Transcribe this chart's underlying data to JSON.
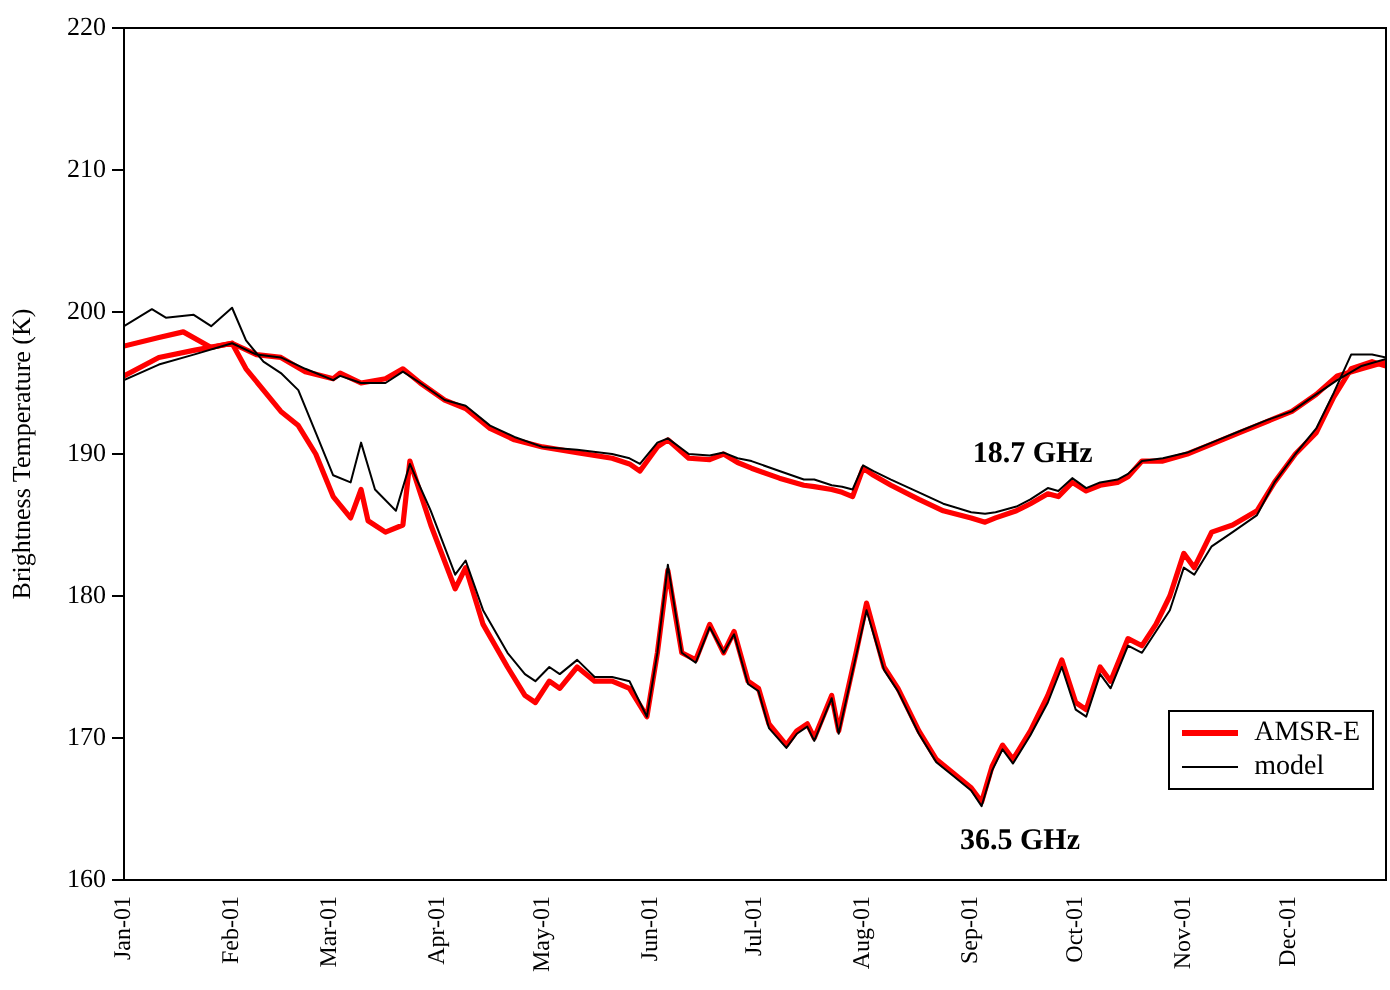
{
  "chart_data": {
    "type": "line",
    "ylabel": "Brightness Temperature (K)",
    "xlim": [
      "--01-01",
      "--12-29"
    ],
    "xticks": [
      {
        "value": "--01-01",
        "label": "Jan-01"
      },
      {
        "value": "--02-01",
        "label": "Feb-01"
      },
      {
        "value": "--03-01",
        "label": "Mar-01"
      },
      {
        "value": "--04-01",
        "label": "Apr-01"
      },
      {
        "value": "--05-01",
        "label": "May-01"
      },
      {
        "value": "--06-01",
        "label": "Jun-01"
      },
      {
        "value": "--07-01",
        "label": "Jul-01"
      },
      {
        "value": "--08-01",
        "label": "Aug-01"
      },
      {
        "value": "--09-01",
        "label": "Sep-01"
      },
      {
        "value": "--10-01",
        "label": "Oct-01"
      },
      {
        "value": "--11-01",
        "label": "Nov-01"
      },
      {
        "value": "--12-01",
        "label": "Dec-01"
      }
    ],
    "ylim": [
      160,
      220
    ],
    "yticks": [
      160,
      170,
      180,
      190,
      200,
      210,
      220
    ],
    "legend": "bottom right",
    "marker": "none",
    "line_style": "solid",
    "annotations": [
      "18.7 GHz",
      "36.5 GHz"
    ],
    "x": [
      "--01-01",
      "--01-11",
      "--01-21",
      "--02-01",
      "--02-08",
      "--02-15",
      "--02-22",
      "--03-02",
      "--03-04",
      "--03-10",
      "--03-17",
      "--03-22",
      "--03-27",
      "--04-03",
      "--04-09",
      "--04-16",
      "--04-23",
      "--05-01",
      "--05-11",
      "--05-21",
      "--05-26",
      "--05-29",
      "--06-03",
      "--06-06",
      "--06-12",
      "--06-18",
      "--06-22",
      "--06-26",
      "--06-30",
      "--07-08",
      "--07-15",
      "--07-18",
      "--07-23",
      "--07-26",
      "--07-29",
      "--08-01",
      "--08-04",
      "--08-09",
      "--08-17",
      "--08-24",
      "--09-01",
      "--09-05",
      "--09-08",
      "--09-14",
      "--09-18",
      "--09-23",
      "--09-26",
      "--09-30",
      "--10-04",
      "--10-08",
      "--10-13",
      "--10-16",
      "--10-20",
      "--10-26",
      "--11-02",
      "--11-09",
      "--11-17",
      "--11-25",
      "--12-02",
      "--12-09",
      "--12-15",
      "--12-22",
      "--12-29"
    ],
    "series": [
      {
        "name": "AMSR-E",
        "color": "#ff0000",
        "x": [
          "--01-01",
          "--01-11",
          "--01-18",
          "--01-26",
          "--02-01",
          "--02-05",
          "--02-15",
          "--02-20",
          "--02-25",
          "--03-02",
          "--03-07",
          "--03-10",
          "--03-12",
          "--03-17",
          "--03-22",
          "--03-24",
          "--03-30",
          "--04-06",
          "--04-09",
          "--04-14",
          "--04-21",
          "--04-26",
          "--04-29",
          "--05-03",
          "--05-06",
          "--05-11",
          "--05-16",
          "--05-21",
          "--05-26",
          "--05-31",
          "--06-03",
          "--06-06",
          "--06-10",
          "--06-14",
          "--06-18",
          "--06-22",
          "--06-25",
          "--06-29",
          "--07-02",
          "--07-05",
          "--07-10",
          "--07-13",
          "--07-16",
          "--07-18",
          "--07-23",
          "--07-25",
          "--07-30",
          "--08-02",
          "--08-07",
          "--08-11",
          "--08-17",
          "--08-22",
          "--08-27",
          "--09-01",
          "--09-04",
          "--09-07",
          "--09-10",
          "--09-13",
          "--09-18",
          "--09-23",
          "--09-27",
          "--10-01",
          "--10-04",
          "--10-08",
          "--10-11",
          "--10-16",
          "--10-20",
          "--10-24",
          "--10-28",
          "--11-01",
          "--11-04",
          "--11-09",
          "--11-15",
          "--11-22",
          "--11-27",
          "--12-03",
          "--12-09",
          "--12-14",
          "--12-19",
          "--12-25",
          "--12-29"
        ],
        "values": [
          197.6,
          198.2,
          198.6,
          197.5,
          197.8,
          196,
          193,
          192,
          190,
          187,
          185.5,
          187.5,
          185.3,
          184.5,
          185,
          189.5,
          185,
          180.5,
          182,
          178,
          175,
          173,
          172.5,
          174,
          173.5,
          175,
          174,
          174,
          173.5,
          171.5,
          176,
          181.8,
          176,
          175.5,
          178,
          176,
          177.5,
          174,
          173.5,
          171,
          169.5,
          170.5,
          171,
          170,
          173,
          170.5,
          176,
          179.5,
          175,
          173.5,
          170.5,
          168.5,
          167.5,
          166.5,
          165.5,
          168,
          169.5,
          168.5,
          170.5,
          173,
          175.5,
          172.5,
          172,
          175,
          174,
          177,
          176.5,
          178,
          180,
          183,
          182,
          184.5,
          185,
          186,
          188,
          190,
          191.5,
          194,
          196,
          196.5,
          196.2
        ]
      },
      {
        "name": "model",
        "color": "#000000",
        "x": [
          "--01-01",
          "--01-09",
          "--01-13",
          "--01-21",
          "--01-26",
          "--02-01",
          "--02-05",
          "--02-10",
          "--02-15",
          "--02-20",
          "--02-25",
          "--03-02",
          "--03-07",
          "--03-10",
          "--03-14",
          "--03-20",
          "--03-24",
          "--03-30",
          "--04-06",
          "--04-09",
          "--04-14",
          "--04-21",
          "--04-26",
          "--04-29",
          "--05-03",
          "--05-06",
          "--05-11",
          "--05-16",
          "--05-21",
          "--05-26",
          "--05-31",
          "--06-03",
          "--06-06",
          "--06-10",
          "--06-14",
          "--06-18",
          "--06-22",
          "--06-25",
          "--06-29",
          "--07-02",
          "--07-05",
          "--07-10",
          "--07-13",
          "--07-16",
          "--07-18",
          "--07-23",
          "--07-25",
          "--07-30",
          "--08-02",
          "--08-07",
          "--08-11",
          "--08-17",
          "--08-22",
          "--08-27",
          "--09-01",
          "--09-04",
          "--09-07",
          "--09-10",
          "--09-13",
          "--09-18",
          "--09-23",
          "--09-27",
          "--10-01",
          "--10-04",
          "--10-08",
          "--10-11",
          "--10-16",
          "--10-20",
          "--10-24",
          "--10-28",
          "--11-01",
          "--11-04",
          "--11-09",
          "--11-15",
          "--11-22",
          "--11-27",
          "--12-03",
          "--12-09",
          "--12-14",
          "--12-19",
          "--12-25",
          "--12-29"
        ],
        "values": [
          199,
          200.2,
          199.6,
          199.8,
          199,
          200.3,
          198,
          196.5,
          195.7,
          194.5,
          191.5,
          188.5,
          188,
          190.8,
          187.5,
          186,
          189.3,
          186,
          181.5,
          182.5,
          179,
          176,
          174.5,
          174,
          175,
          174.5,
          175.5,
          174.3,
          174.3,
          174,
          171.5,
          176,
          182.2,
          176,
          175.3,
          177.8,
          176,
          177.3,
          173.8,
          173.3,
          170.7,
          169.3,
          170.3,
          170.8,
          169.8,
          172.8,
          170.3,
          175.8,
          179,
          174.8,
          173.3,
          170.3,
          168.3,
          167.3,
          166.3,
          165.2,
          167.7,
          169.2,
          168.2,
          170.2,
          172.5,
          175,
          172,
          171.5,
          174.5,
          173.5,
          176.5,
          176,
          177.5,
          179,
          182,
          181.5,
          183.5,
          184.5,
          185.7,
          188,
          190,
          191.8,
          194.3,
          197,
          197,
          196.8
        ]
      },
      {
        "color": "#ff0000",
        "values": [
          195.5,
          196.8,
          197.3,
          197.8,
          197,
          196.8,
          195.8,
          195.3,
          195.7,
          195,
          195.3,
          196,
          195,
          193.8,
          193.2,
          191.8,
          191,
          190.5,
          190.1,
          189.7,
          189.3,
          188.8,
          190.5,
          191,
          189.7,
          189.6,
          190,
          189.4,
          189,
          188.3,
          187.8,
          187.7,
          187.5,
          187.3,
          187,
          189,
          188.5,
          187.8,
          186.8,
          186,
          185.5,
          185.2,
          185.5,
          186,
          186.5,
          187.2,
          187,
          188,
          187.4,
          187.8,
          188,
          188.4,
          189.5,
          189.5,
          190,
          190.7,
          191.5,
          192.3,
          193,
          194.2,
          195.5,
          196,
          196.5
        ]
      },
      {
        "color": "#000000",
        "values": [
          195.2,
          196.3,
          197,
          197.8,
          197,
          196.8,
          196,
          195.2,
          195.5,
          195,
          195,
          195.8,
          195,
          193.8,
          193.4,
          192,
          191.2,
          190.5,
          190.3,
          190,
          189.7,
          189.3,
          190.8,
          191.1,
          190,
          189.9,
          190.1,
          189.7,
          189.5,
          188.8,
          188.2,
          188.2,
          187.8,
          187.7,
          187.5,
          189.2,
          188.8,
          188.2,
          187.3,
          186.5,
          185.9,
          185.8,
          185.9,
          186.3,
          186.8,
          187.6,
          187.4,
          188.3,
          187.6,
          188,
          188.2,
          188.6,
          189.5,
          189.7,
          190.1,
          190.8,
          191.6,
          192.4,
          193,
          194.2,
          195.2,
          196.2,
          196.7
        ]
      }
    ]
  }
}
